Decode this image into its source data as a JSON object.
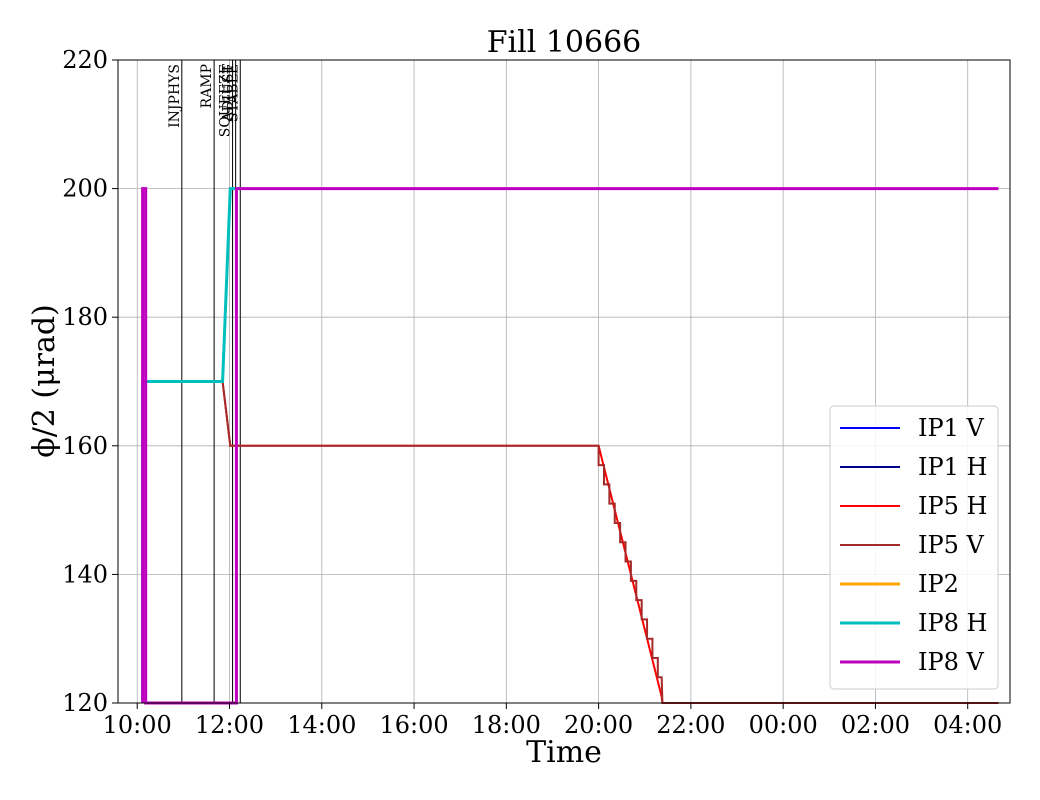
{
  "chart_data": {
    "type": "line",
    "title": "Fill 10666",
    "xlabel": "Time",
    "ylabel": "ϕ/2 (μrad)",
    "xlim": [
      "09:35",
      "04:55"
    ],
    "ylim": [
      120,
      220
    ],
    "x_ticks": [
      "10:00",
      "12:00",
      "14:00",
      "16:00",
      "18:00",
      "20:00",
      "22:00",
      "00:00",
      "02:00",
      "04:00"
    ],
    "y_ticks": [
      120,
      140,
      160,
      180,
      200,
      220
    ],
    "grid": true,
    "legend_position": "lower-right",
    "markers": [
      {
        "label": "INJPHYS",
        "x": "10:58"
      },
      {
        "label": "RAMP",
        "x": "11:40"
      },
      {
        "label": "SQUEEZE",
        "x": "12:04"
      },
      {
        "label": "ADJUST",
        "x": "12:08"
      },
      {
        "label": "STABLE",
        "x": "12:14"
      }
    ],
    "series": [
      {
        "name": "IP1 V",
        "color": "#0000ff",
        "x": [],
        "y": []
      },
      {
        "name": "IP1 H",
        "color": "#00008b",
        "x": [],
        "y": []
      },
      {
        "name": "IP5 H",
        "color": "#ff0000",
        "x": [
          "10:07",
          "11:51",
          "12:01",
          "20:00",
          "21:22",
          "21:23",
          "04:40"
        ],
        "y": [
          170,
          170,
          160,
          160,
          121,
          120,
          120
        ]
      },
      {
        "name": "IP5 V",
        "color": "#a52a2a",
        "x": [
          "10:07",
          "11:51",
          "12:01",
          "20:00",
          "20:00",
          "20:07",
          "20:07",
          "20:14",
          "20:14",
          "20:21",
          "20:21",
          "20:28",
          "20:28",
          "20:35",
          "20:35",
          "20:42",
          "20:42",
          "20:49",
          "20:49",
          "20:56",
          "20:56",
          "21:03",
          "21:03",
          "21:10",
          "21:10",
          "21:17",
          "21:17",
          "21:22",
          "21:23",
          "04:40"
        ],
        "y": [
          170,
          170,
          160,
          160,
          157,
          157,
          154,
          154,
          151,
          151,
          148,
          148,
          145,
          145,
          142,
          142,
          139,
          139,
          136,
          136,
          133,
          133,
          130,
          130,
          127,
          127,
          124,
          124,
          120,
          120
        ]
      },
      {
        "name": "IP2",
        "color": "#ffa500",
        "x": [],
        "y": []
      },
      {
        "name": "IP8 H",
        "color": "#00bfbf",
        "x": [
          "10:07",
          "10:07",
          "11:51",
          "12:01",
          "12:16"
        ],
        "y": [
          120,
          170,
          170,
          200,
          200
        ]
      },
      {
        "name": "IP8 V",
        "color": "#bf00bf",
        "x": [
          "10:07",
          "10:07",
          "10:11",
          "10:11",
          "12:09",
          "12:09",
          "12:12",
          "12:12",
          "04:40"
        ],
        "y": [
          120,
          200,
          200,
          120,
          120,
          200,
          200,
          200,
          200
        ]
      }
    ]
  }
}
